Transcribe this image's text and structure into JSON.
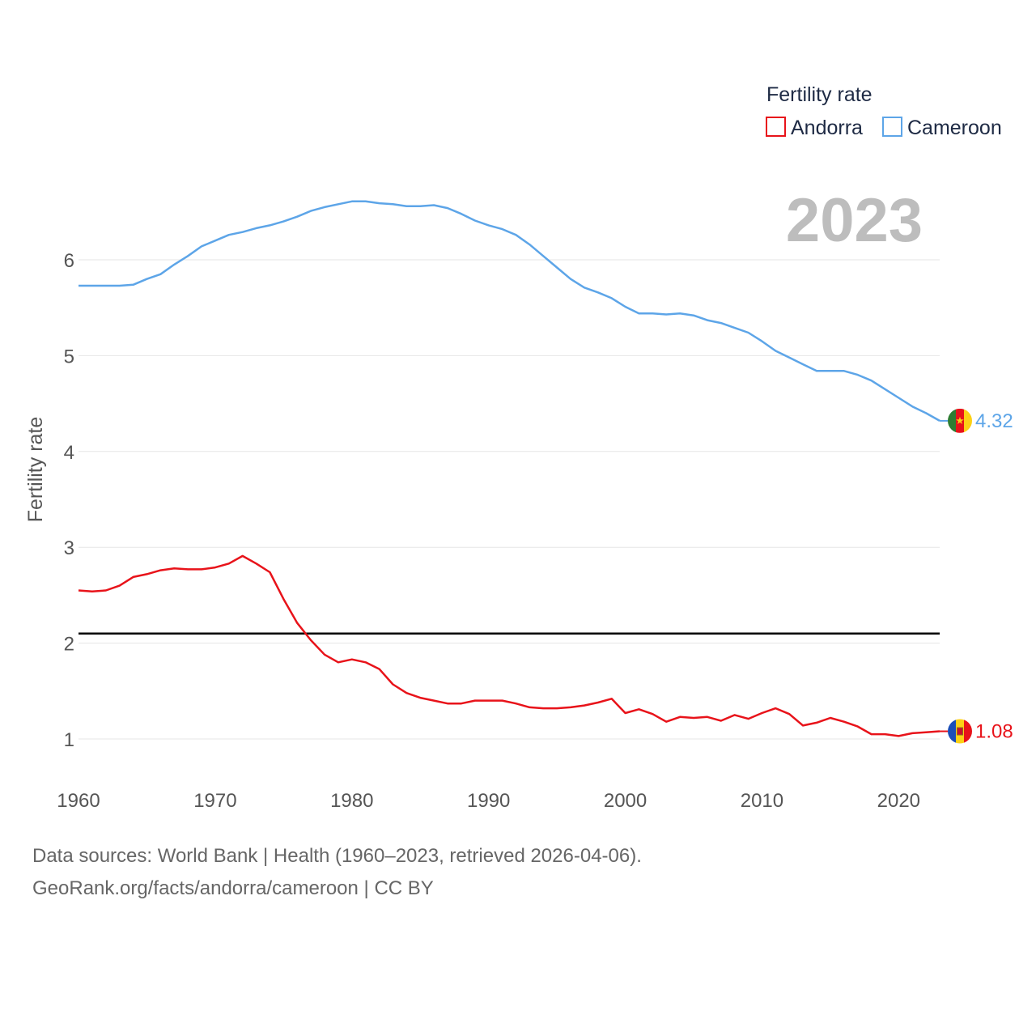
{
  "chart_data": {
    "type": "line",
    "title": "Fertility rate",
    "year_label": "2023",
    "ylabel": "Fertility rate",
    "xlabel": "",
    "xlim": [
      1960,
      2023
    ],
    "ylim": [
      0.5,
      7
    ],
    "x_ticks": [
      "1960",
      "1970",
      "1980",
      "1990",
      "2000",
      "2010",
      "2020"
    ],
    "y_ticks": [
      "1",
      "2",
      "3",
      "4",
      "5",
      "6"
    ],
    "reference_line": {
      "y": 2.1,
      "color": "#000000"
    },
    "x": [
      1960,
      1961,
      1962,
      1963,
      1964,
      1965,
      1966,
      1967,
      1968,
      1969,
      1970,
      1971,
      1972,
      1973,
      1974,
      1975,
      1976,
      1977,
      1978,
      1979,
      1980,
      1981,
      1982,
      1983,
      1984,
      1985,
      1986,
      1987,
      1988,
      1989,
      1990,
      1991,
      1992,
      1993,
      1994,
      1995,
      1996,
      1997,
      1998,
      1999,
      2000,
      2001,
      2002,
      2003,
      2004,
      2005,
      2006,
      2007,
      2008,
      2009,
      2010,
      2011,
      2012,
      2013,
      2014,
      2015,
      2016,
      2017,
      2018,
      2019,
      2020,
      2021,
      2022,
      2023
    ],
    "series": [
      {
        "name": "Andorra",
        "color": "#e8131a",
        "end_label": "1.08",
        "values": [
          2.55,
          2.54,
          2.55,
          2.6,
          2.69,
          2.72,
          2.76,
          2.78,
          2.77,
          2.77,
          2.79,
          2.83,
          2.91,
          2.83,
          2.74,
          2.46,
          2.21,
          2.03,
          1.88,
          1.8,
          1.83,
          1.8,
          1.73,
          1.57,
          1.48,
          1.43,
          1.4,
          1.37,
          1.37,
          1.4,
          1.4,
          1.4,
          1.37,
          1.33,
          1.32,
          1.32,
          1.33,
          1.35,
          1.38,
          1.42,
          1.27,
          1.31,
          1.26,
          1.18,
          1.23,
          1.22,
          1.23,
          1.19,
          1.25,
          1.21,
          1.27,
          1.32,
          1.26,
          1.14,
          1.17,
          1.22,
          1.18,
          1.13,
          1.05,
          1.05,
          1.03,
          1.06,
          1.07,
          1.08
        ]
      },
      {
        "name": "Cameroon",
        "color": "#5da5e8",
        "end_label": "4.32",
        "values": [
          5.73,
          5.73,
          5.73,
          5.73,
          5.74,
          5.8,
          5.85,
          5.95,
          6.04,
          6.14,
          6.2,
          6.26,
          6.29,
          6.33,
          6.36,
          6.4,
          6.45,
          6.51,
          6.55,
          6.58,
          6.61,
          6.61,
          6.59,
          6.58,
          6.56,
          6.56,
          6.57,
          6.54,
          6.48,
          6.41,
          6.36,
          6.32,
          6.26,
          6.16,
          6.04,
          5.92,
          5.8,
          5.71,
          5.66,
          5.6,
          5.51,
          5.44,
          5.44,
          5.43,
          5.44,
          5.42,
          5.37,
          5.34,
          5.29,
          5.24,
          5.15,
          5.05,
          4.98,
          4.91,
          4.84,
          4.84,
          4.84,
          4.8,
          4.74,
          4.65,
          4.56,
          4.47,
          4.4,
          4.32
        ]
      }
    ],
    "legend": {
      "title": "Fertility rate",
      "entries": [
        "Andorra",
        "Cameroon"
      ],
      "placement": "top-right"
    }
  },
  "footer": {
    "source": "Data sources: World Bank | Health (1960–2023, retrieved 2026-04-06).",
    "link": "GeoRank.org/facts/andorra/cameroon | CC BY"
  },
  "flags": {
    "andorra": {
      "icon": "andorra-flag-icon",
      "colors": [
        "#1a4eb8",
        "#fcd116",
        "#e8131a"
      ]
    },
    "cameroon": {
      "icon": "cameroon-flag-icon",
      "colors": [
        "#2e7d32",
        "#e8131a",
        "#fcd116"
      ]
    }
  }
}
